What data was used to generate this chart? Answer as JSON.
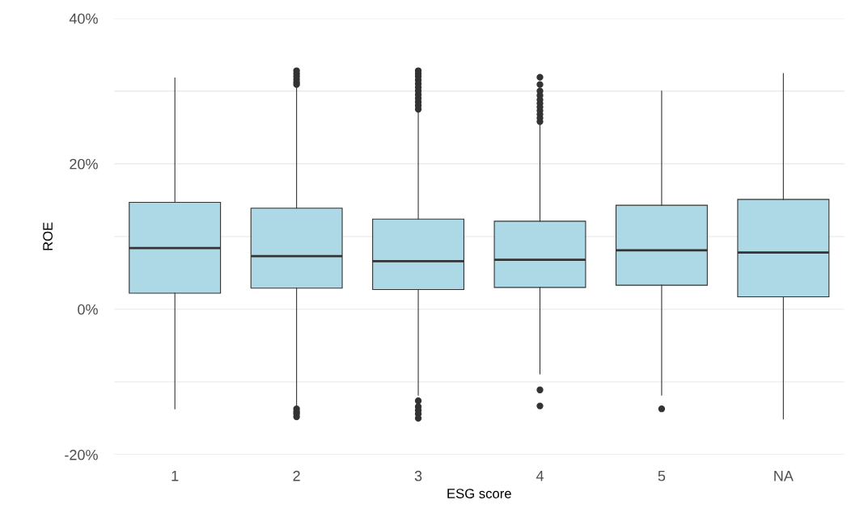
{
  "chart_data": {
    "type": "box",
    "xlabel": "ESG score",
    "ylabel": "ROE",
    "categories": [
      "1",
      "2",
      "3",
      "4",
      "5",
      "NA"
    ],
    "color": "#add8e6",
    "boxes": [
      {
        "low": -13.7,
        "q1": 2.2,
        "median": 8.4,
        "q3": 14.7,
        "high": 31.8
      },
      {
        "low": -13.3,
        "q1": 2.9,
        "median": 7.3,
        "q3": 13.9,
        "high": 30.5,
        "outliers": [
          30.9,
          31.2,
          31.6,
          32.0,
          32.4,
          32.8,
          -13.7,
          -14.1,
          -14.4,
          -14.8
        ]
      },
      {
        "low": -11.8,
        "q1": 2.7,
        "median": 6.6,
        "q3": 12.4,
        "high": 27.2,
        "outliers": [
          27.5,
          28.0,
          28.5,
          29.0,
          29.5,
          30.0,
          30.5,
          31.0,
          31.5,
          32.0,
          32.4,
          32.8,
          -12.6,
          -13.4,
          -13.9,
          -14.4,
          -15.0
        ]
      },
      {
        "low": -8.9,
        "q1": 3.0,
        "median": 6.8,
        "q3": 12.1,
        "high": 25.6,
        "outliers": [
          25.8,
          26.3,
          26.8,
          27.3,
          27.8,
          28.3,
          28.8,
          29.4,
          30.0,
          30.9,
          31.9,
          -11.1,
          -13.3
        ]
      },
      {
        "low": -11.8,
        "q1": 3.3,
        "median": 8.1,
        "q3": 14.3,
        "high": 30.0,
        "outliers": [
          -13.7
        ]
      },
      {
        "low": -15.1,
        "q1": 1.7,
        "median": 7.8,
        "q3": 15.1,
        "high": 32.4
      }
    ],
    "ylim": [
      -20,
      40
    ],
    "yticks": [
      {
        "value": -20,
        "label": "-20%"
      },
      {
        "value": -10,
        "label": null
      },
      {
        "value": 0,
        "label": "0%"
      },
      {
        "value": 10,
        "label": null
      },
      {
        "value": 20,
        "label": "20%"
      },
      {
        "value": 30,
        "label": null
      },
      {
        "value": 40,
        "label": "40%"
      }
    ],
    "grid": "y"
  }
}
